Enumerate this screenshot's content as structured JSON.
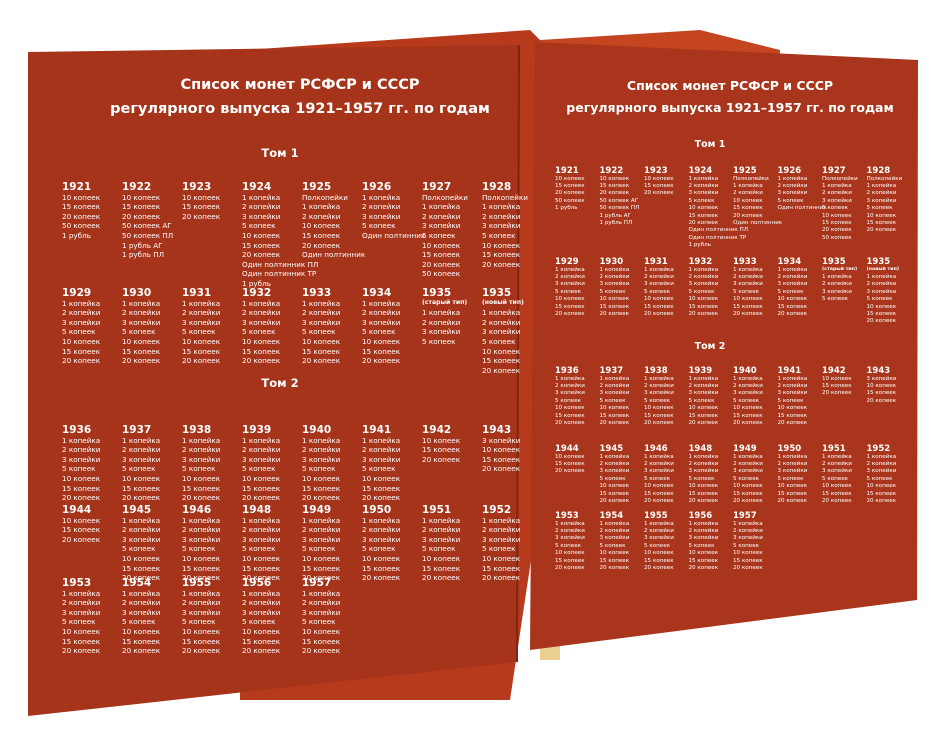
{
  "title": [
    "Список монет РСФСР и СССР",
    "регулярного выпуска 1921–1957 гг. по годам"
  ],
  "volumes": [
    {
      "title": "Том 1",
      "rows": [
        [
          {
            "year": "1921",
            "items": [
              "10 копеек",
              "15 копеек",
              "20 копеек",
              "50 копеек",
              "1 рубль"
            ]
          },
          {
            "year": "1922",
            "items": [
              "10 копеек",
              "15 копеек",
              "20 копеек",
              "50 копеек АГ",
              "50 копеек ПЛ",
              "1 рубль АГ",
              "1 рубль ПЛ"
            ]
          },
          {
            "year": "1923",
            "items": [
              "10 копеек",
              "15 копеек",
              "20 копеек"
            ]
          },
          {
            "year": "1924",
            "items": [
              "1 копейка",
              "2 копейки",
              "3 копейки",
              "5 копеек",
              "10 копеек",
              "15 копеек",
              "20 копеек",
              "Один полтинник ПЛ",
              "Один полтинник ТР",
              "1 рубль"
            ]
          },
          {
            "year": "1925",
            "items": [
              "Полкопейки",
              "1 копейка",
              "2 копейки",
              "10 копеек",
              "15 копеек",
              "20 копеек",
              "Один полтинник"
            ]
          },
          {
            "year": "1926",
            "items": [
              "1 копейка",
              "2 копейки",
              "3 копейки",
              "5 копеек",
              "Один полтинник"
            ]
          },
          {
            "year": "1927",
            "items": [
              "Полкопейки",
              "1 копейка",
              "2 копейки",
              "3 копейки",
              "5 копеек",
              "10 копеек",
              "15 копеек",
              "20 копеек",
              "50 копеек"
            ]
          },
          {
            "year": "1928",
            "items": [
              "Полкопейки",
              "1 копейка",
              "2 копейки",
              "3 копейки",
              "5 копеек",
              "10 копеек",
              "15 копеек",
              "20 копеек"
            ]
          }
        ],
        [
          {
            "year": "1929",
            "items": [
              "1 копейка",
              "2 копейки",
              "3 копейки",
              "5 копеек",
              "10 копеек",
              "15 копеек",
              "20 копеек"
            ]
          },
          {
            "year": "1930",
            "items": [
              "1 копейка",
              "2 копейки",
              "3 копейки",
              "5 копеек",
              "10 копеек",
              "15 копеек",
              "20 копеек"
            ]
          },
          {
            "year": "1931",
            "items": [
              "1 копейка",
              "2 копейки",
              "3 копейки",
              "5 копеек",
              "10 копеек",
              "15 копеек",
              "20 копеек"
            ]
          },
          {
            "year": "1932",
            "items": [
              "1 копейка",
              "2 копейки",
              "3 копейки",
              "5 копеек",
              "10 копеек",
              "15 копеек",
              "20 копеек"
            ]
          },
          {
            "year": "1933",
            "items": [
              "1 копейка",
              "2 копейки",
              "3 копейки",
              "5 копеек",
              "10 копеек",
              "15 копеек",
              "20 копеек"
            ]
          },
          {
            "year": "1934",
            "items": [
              "1 копейка",
              "2 копейки",
              "3 копейки",
              "5 копеек",
              "10 копеек",
              "15 копеек",
              "20 копеек"
            ]
          },
          {
            "year": "1935",
            "note": "(старый тип)",
            "items": [
              "1 копейка",
              "2 копейки",
              "3 копейки",
              "5 копеек"
            ]
          },
          {
            "year": "1935",
            "note": "(новый тип)",
            "items": [
              "1 копейка",
              "2 копейки",
              "3 копейки",
              "5 копеек",
              "10 копеек",
              "15 копеек",
              "20 копеек"
            ]
          }
        ]
      ]
    },
    {
      "title": "Том 2",
      "rows": [
        [
          {
            "year": "1936",
            "items": [
              "1 копейка",
              "2 копейки",
              "3 копейки",
              "5 копеек",
              "10 копеек",
              "15 копеек",
              "20 копеек"
            ]
          },
          {
            "year": "1937",
            "items": [
              "1 копейка",
              "2 копейки",
              "3 копейки",
              "5 копеек",
              "10 копеек",
              "15 копеек",
              "20 копеек"
            ]
          },
          {
            "year": "1938",
            "items": [
              "1 копейка",
              "2 копейки",
              "3 копейки",
              "5 копеек",
              "10 копеек",
              "15 копеек",
              "20 копеек"
            ]
          },
          {
            "year": "1939",
            "items": [
              "1 копейка",
              "2 копейки",
              "3 копейки",
              "5 копеек",
              "10 копеек",
              "15 копеек",
              "20 копеек"
            ]
          },
          {
            "year": "1940",
            "items": [
              "1 копейка",
              "2 копейки",
              "3 копейки",
              "5 копеек",
              "10 копеек",
              "15 копеек",
              "20 копеек"
            ]
          },
          {
            "year": "1941",
            "items": [
              "1 копейка",
              "2 копейки",
              "3 копейки",
              "5 копеек",
              "10 копеек",
              "15 копеек",
              "20 копеек"
            ]
          },
          {
            "year": "1942",
            "items": [
              "10 копеек",
              "15 копеек",
              "20 копеек"
            ]
          },
          {
            "year": "1943",
            "items": [
              "3 копейки",
              "10 копеек",
              "15 копеек",
              "20 копеек"
            ]
          }
        ],
        [
          {
            "year": "1944",
            "items": [
              "10 копеек",
              "15 копеек",
              "20 копеек"
            ]
          },
          {
            "year": "1945",
            "items": [
              "1 копейка",
              "2 копейки",
              "3 копейки",
              "5 копеек",
              "10 копеек",
              "15 копеек",
              "20 копеек"
            ]
          },
          {
            "year": "1946",
            "items": [
              "1 копейка",
              "2 копейки",
              "3 копейки",
              "5 копеек",
              "10 копеек",
              "15 копеек",
              "20 копеек"
            ]
          },
          {
            "year": "1948",
            "items": [
              "1 копейка",
              "2 копейки",
              "3 копейки",
              "5 копеек",
              "10 копеек",
              "15 копеек",
              "20 копеек"
            ]
          },
          {
            "year": "1949",
            "items": [
              "1 копейка",
              "2 копейки",
              "3 копейки",
              "5 копеек",
              "10 копеек",
              "15 копеек",
              "20 копеек"
            ]
          },
          {
            "year": "1950",
            "items": [
              "1 копейка",
              "2 копейки",
              "3 копейки",
              "5 копеек",
              "10 копеек",
              "15 копеек",
              "20 копеек"
            ]
          },
          {
            "year": "1951",
            "items": [
              "1 копейка",
              "2 копейки",
              "3 копейки",
              "5 копеек",
              "10 копеек",
              "15 копеек",
              "20 копеек"
            ]
          },
          {
            "year": "1952",
            "items": [
              "1 копейка",
              "2 копейки",
              "3 копейки",
              "5 копеек",
              "10 копеек",
              "15 копеек",
              "20 копеек"
            ]
          }
        ],
        [
          {
            "year": "1953",
            "items": [
              "1 копейка",
              "2 копейки",
              "3 копейки",
              "5 копеек",
              "10 копеек",
              "15 копеек",
              "20 копеек"
            ]
          },
          {
            "year": "1954",
            "items": [
              "1 копейка",
              "2 копейки",
              "3 копейки",
              "5 копеек",
              "10 копеек",
              "15 копеек",
              "20 копеек"
            ]
          },
          {
            "year": "1955",
            "items": [
              "1 копейка",
              "2 копейки",
              "3 копейки",
              "5 копеек",
              "10 копеек",
              "15 копеек",
              "20 копеек"
            ]
          },
          {
            "year": "1956",
            "items": [
              "1 копейка",
              "2 копейки",
              "3 копейки",
              "5 копеек",
              "10 копеек",
              "15 копеек",
              "20 копеек"
            ]
          },
          {
            "year": "1957",
            "items": [
              "1 копейка",
              "2 копейки",
              "3 копейки",
              "5 копеек",
              "10 копеек",
              "15 копеек",
              "20 копеек"
            ]
          }
        ]
      ]
    }
  ]
}
